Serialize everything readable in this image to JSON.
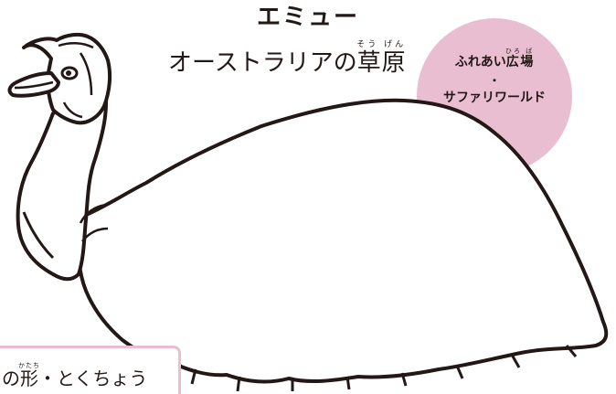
{
  "animal": {
    "name": "エミュー"
  },
  "habitat": {
    "prefix": "オーストラリアの",
    "term": "草原",
    "term_reading": "そう げん"
  },
  "location": {
    "area_prefix": "ふれあい",
    "area_kanji": "広場",
    "area_kanji_reading": "ひろ ば",
    "separator": "・",
    "area_2": "サファリワールド"
  },
  "features_tab": {
    "prefix": "の",
    "kanji": "形",
    "kanji_reading": "かたち",
    "suffix": "・とくちょう"
  },
  "colors": {
    "accent_pink": "#e8bed0",
    "text": "#231815",
    "line_art": "#231815"
  }
}
